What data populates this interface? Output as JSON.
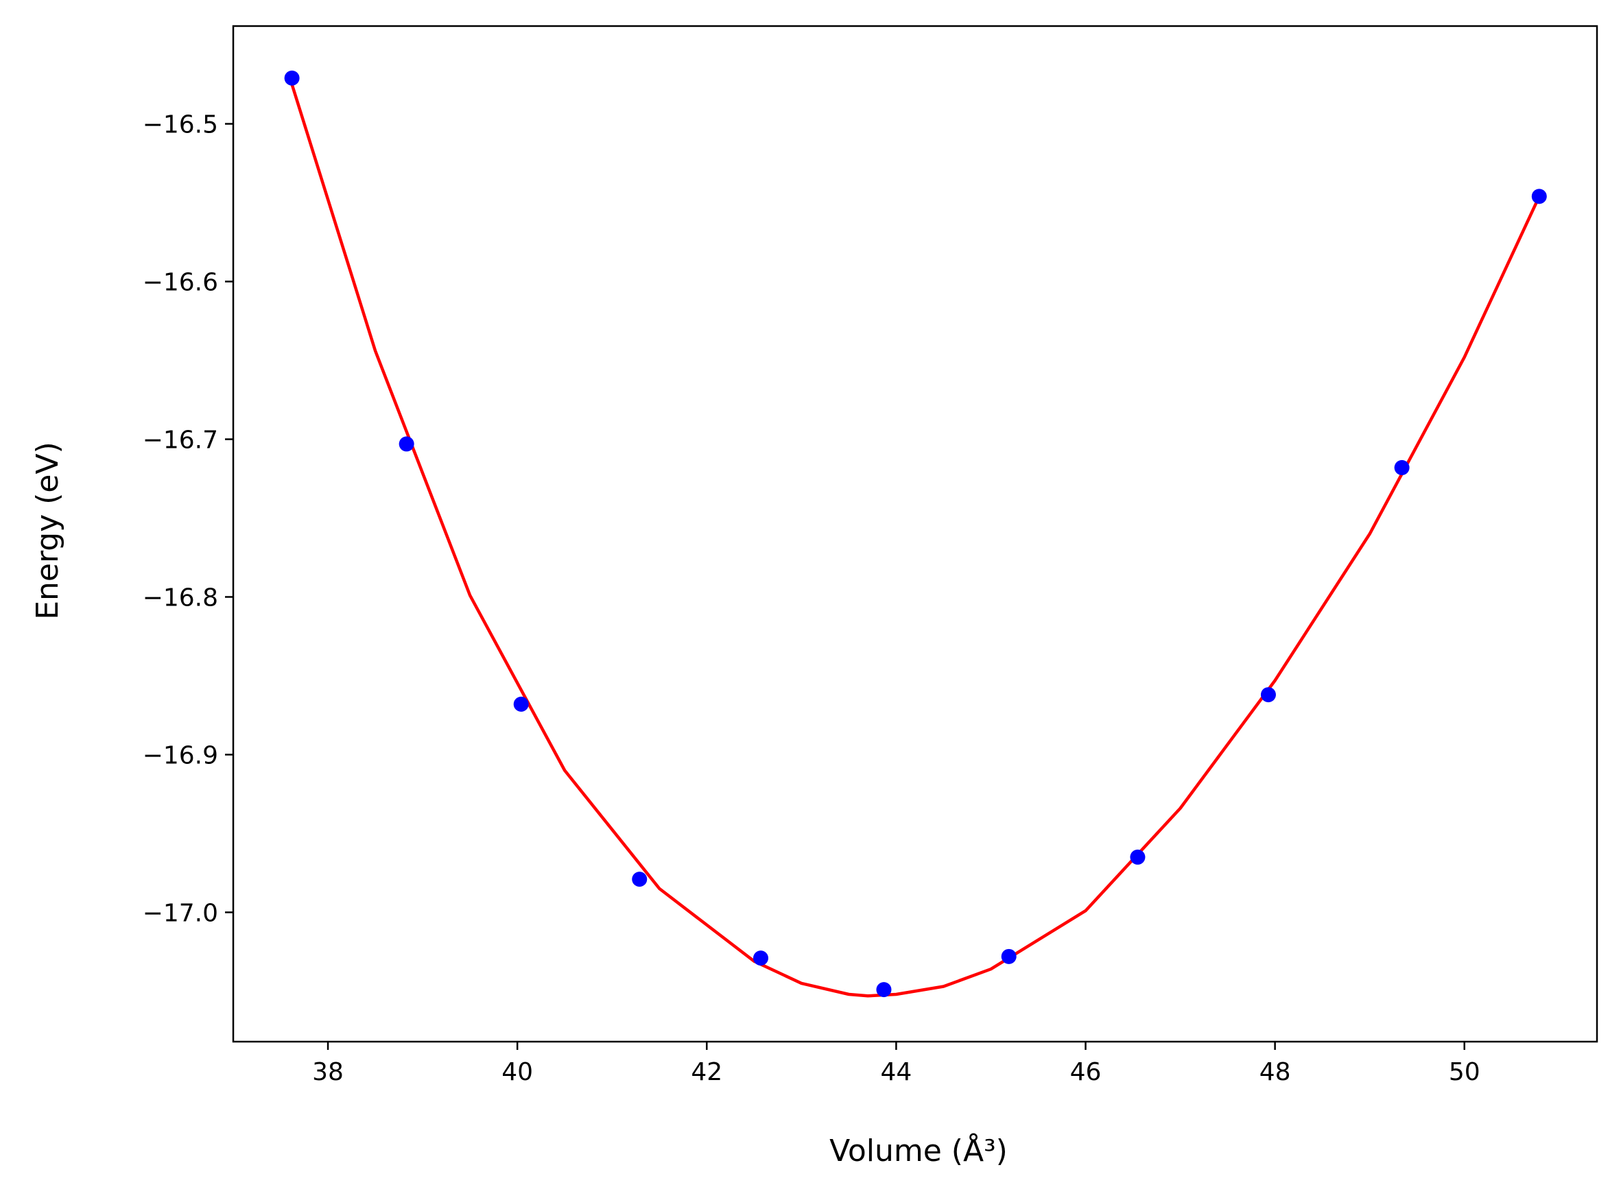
{
  "chart_data": {
    "type": "scatter",
    "xlabel": "Volume (Å³)",
    "ylabel": "Energy (eV)",
    "xlim": [
      37.0,
      51.4
    ],
    "ylim": [
      -17.082,
      -16.438
    ],
    "xticks": [
      38,
      40,
      42,
      44,
      46,
      48,
      50
    ],
    "xtick_labels": [
      "38",
      "40",
      "42",
      "44",
      "46",
      "48",
      "50"
    ],
    "yticks": [
      -16.5,
      -16.6,
      -16.7,
      -16.8,
      -16.9,
      -17.0
    ],
    "ytick_labels": [
      "−16.5",
      "−16.6",
      "−16.7",
      "−16.8",
      "−16.9",
      "−17.0"
    ],
    "grid": false,
    "legend": "none",
    "series": [
      {
        "kind": "points",
        "color": "#0000ff",
        "marker": "circle",
        "x": [
          37.62,
          38.83,
          40.04,
          41.29,
          42.57,
          43.87,
          45.19,
          46.55,
          47.93,
          49.34,
          50.79
        ],
        "y": [
          -16.471,
          -16.703,
          -16.868,
          -16.979,
          -17.029,
          -17.049,
          -17.028,
          -16.965,
          -16.862,
          -16.718,
          -16.546
        ]
      },
      {
        "kind": "fit",
        "color": "#ff0000",
        "style": "solid",
        "x": [
          37.62,
          38.5,
          39.5,
          40.5,
          41.5,
          42.5,
          43.0,
          43.5,
          43.7,
          44.0,
          44.5,
          45.0,
          46.0,
          47.0,
          48.0,
          49.0,
          50.0,
          50.79
        ],
        "y": [
          -16.475,
          -16.644,
          -16.799,
          -16.91,
          -16.985,
          -17.031,
          -17.045,
          -17.052,
          -17.053,
          -17.052,
          -17.047,
          -17.036,
          -16.999,
          -16.934,
          -16.853,
          -16.76,
          -16.648,
          -16.546
        ]
      }
    ]
  }
}
